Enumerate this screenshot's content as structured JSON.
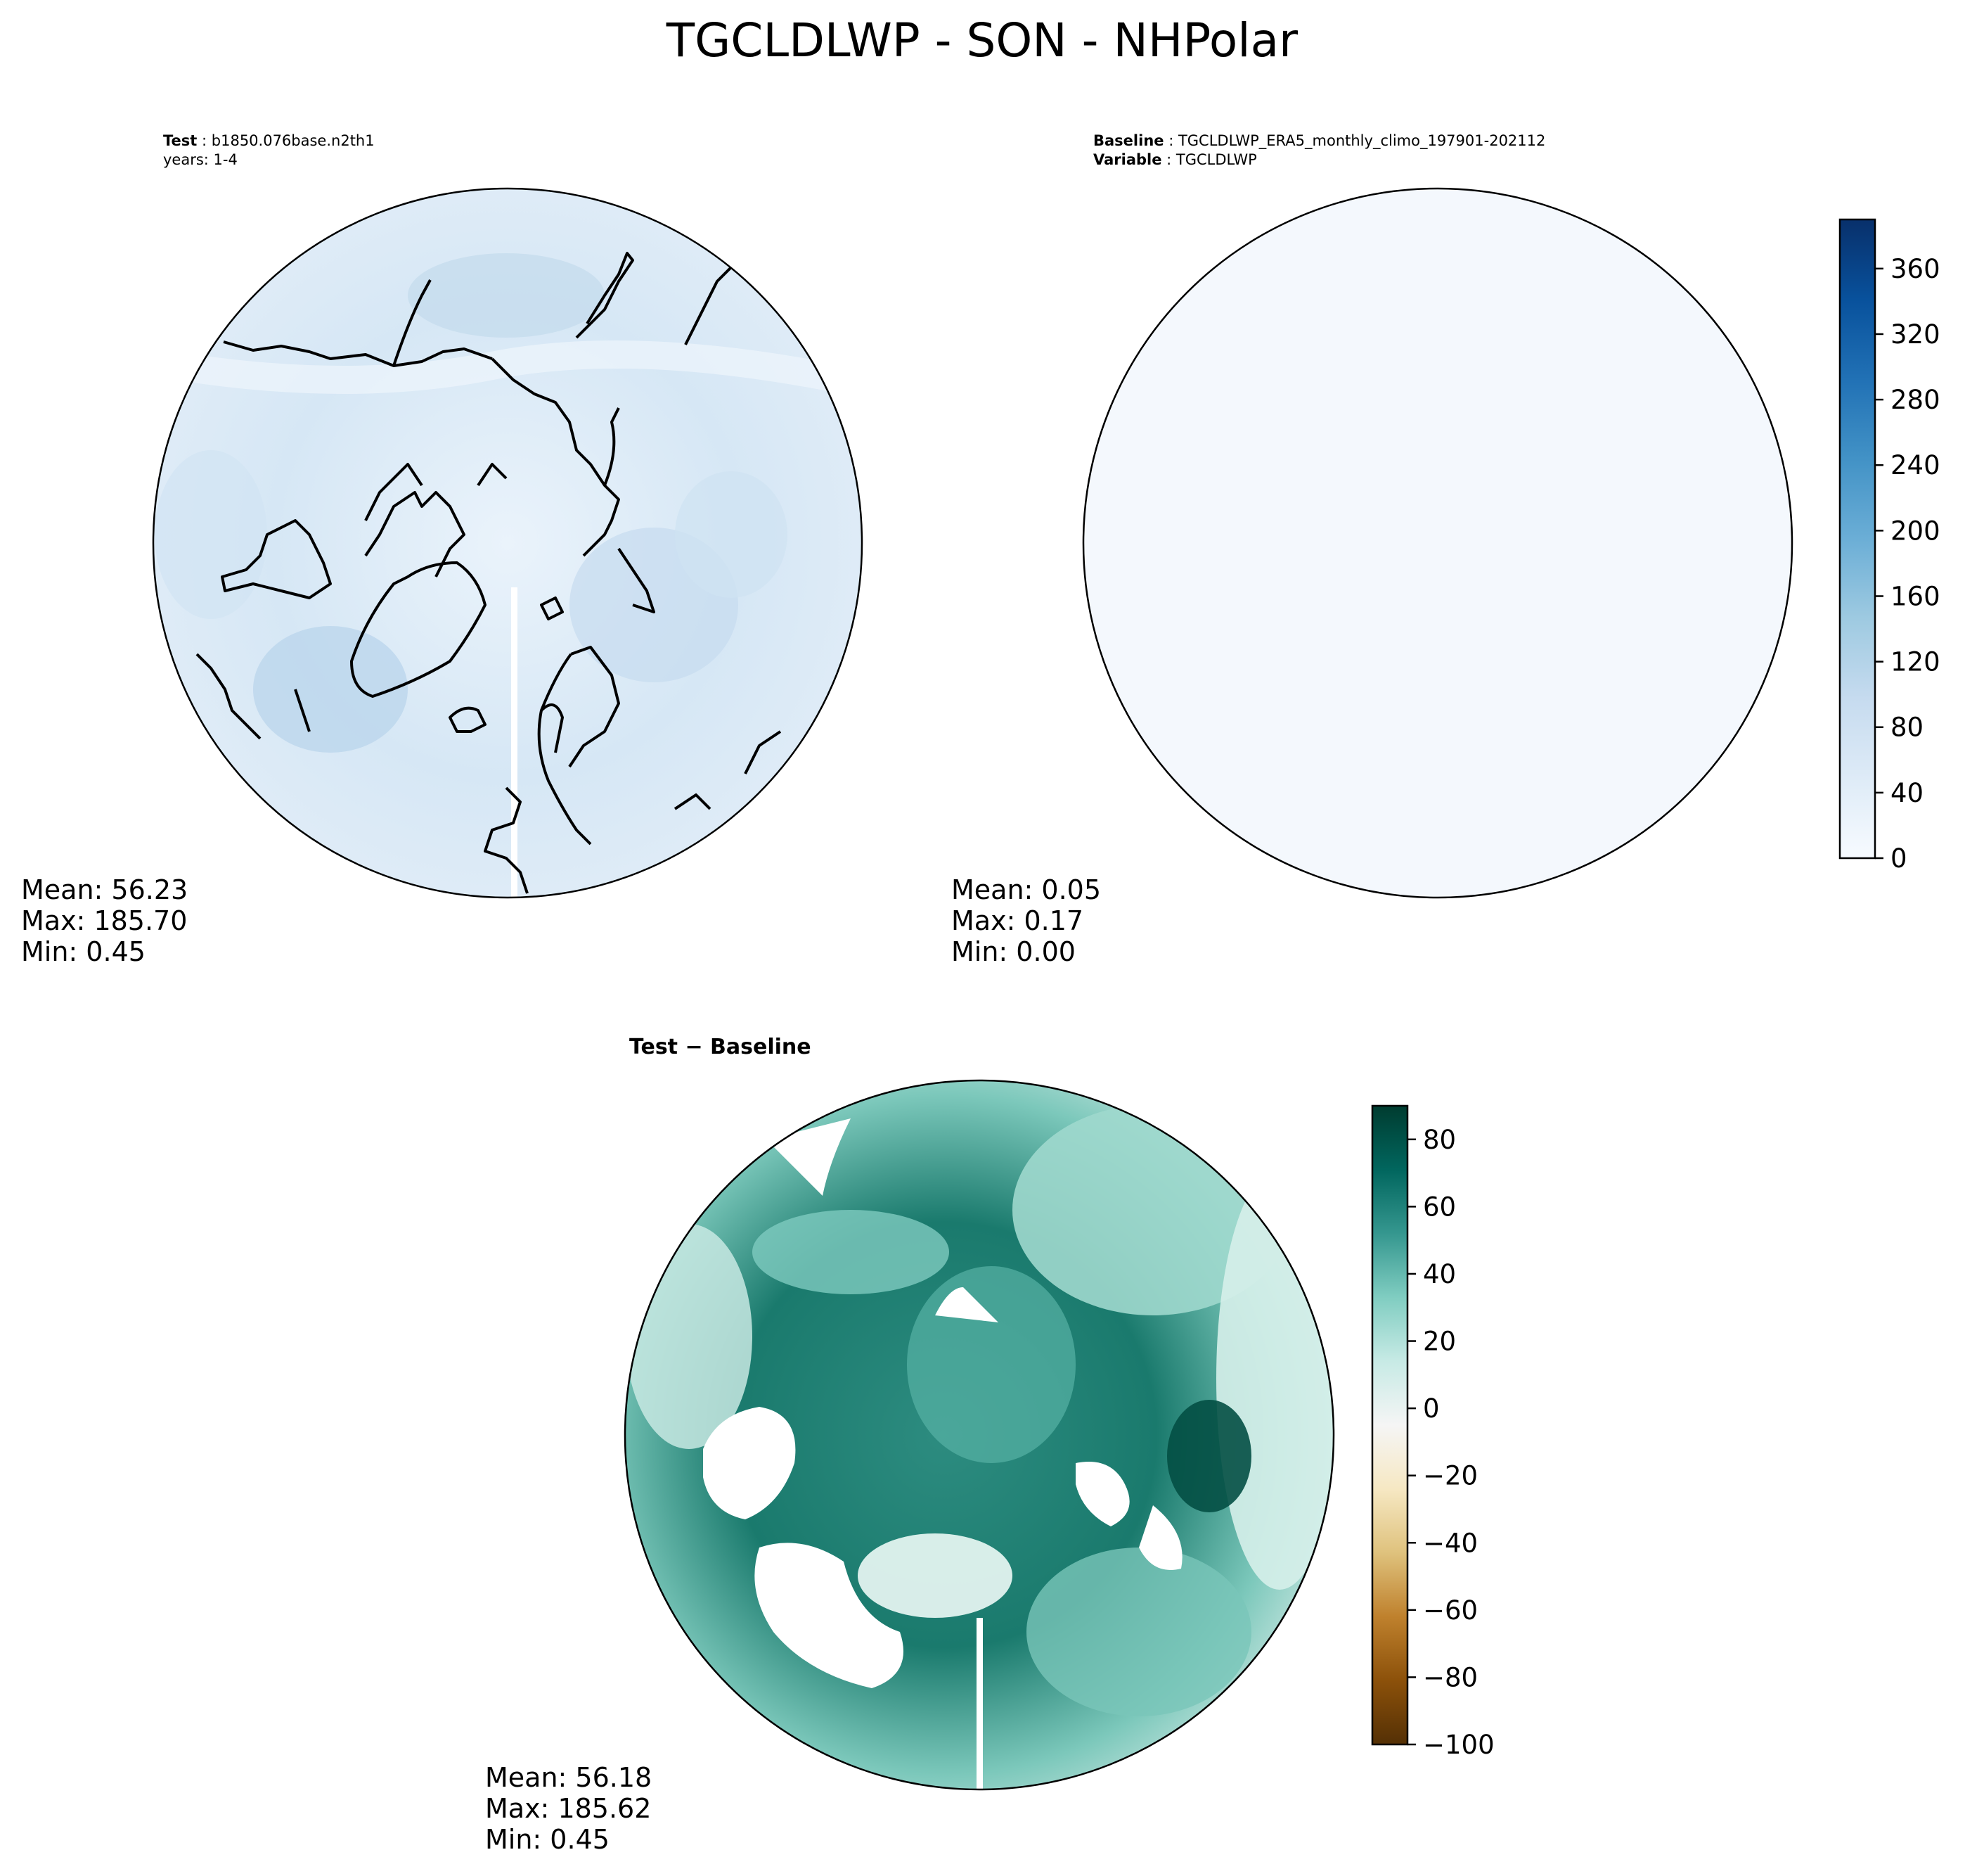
{
  "title": "TGCLDLWP - SON - NHPolar",
  "panels": [
    {
      "id": "test",
      "header_lines": [
        {
          "label": "Test",
          "value": "b1850.076base.n2th1"
        },
        {
          "label": "",
          "value": "years: 1-4"
        }
      ],
      "stats": {
        "mean": "Mean: 56.23",
        "max": "Max: 185.70",
        "min": "Min:  0.45"
      }
    },
    {
      "id": "baseline",
      "header_lines": [
        {
          "label": "Baseline",
          "value": "TGCLDLWP_ERA5_monthly_climo_197901-202112"
        },
        {
          "label": "Variable",
          "value": "TGCLDLWP"
        }
      ],
      "stats": {
        "mean": "Mean:  0.05",
        "max": "Max:  0.17",
        "min": "Min:  0.00"
      }
    },
    {
      "id": "diff",
      "header_lines": [
        {
          "label": "Test − Baseline",
          "value": ""
        }
      ],
      "stats": {
        "mean": "Mean: 56.18",
        "max": "Max: 185.62",
        "min": "Min:  0.45"
      }
    }
  ],
  "colorbars": [
    {
      "id": "cbar-blues",
      "colormap": "Blues",
      "range": [
        0,
        390
      ],
      "ticks": [
        0,
        40,
        80,
        120,
        160,
        200,
        240,
        280,
        320,
        360
      ],
      "tick_labels": [
        "0",
        "40",
        "80",
        "120",
        "160",
        "200",
        "240",
        "280",
        "320",
        "360"
      ],
      "colors": [
        "#f7fbff",
        "#deebf7",
        "#c6dbef",
        "#9ecae1",
        "#6baed6",
        "#4292c6",
        "#2171b5",
        "#08519c",
        "#08306b"
      ]
    },
    {
      "id": "cbar-brbg",
      "colormap": "BrBG",
      "range": [
        -100,
        90
      ],
      "ticks": [
        -100,
        -80,
        -60,
        -40,
        -20,
        0,
        20,
        40,
        60,
        80
      ],
      "tick_labels": [
        "−100",
        "−80",
        "−60",
        "−40",
        "−20",
        "0",
        "20",
        "40",
        "60",
        "80"
      ],
      "colors": [
        "#543005",
        "#8c510a",
        "#bf812d",
        "#dfc27d",
        "#f6e8c3",
        "#f5f5f5",
        "#c7eae5",
        "#80cdc1",
        "#35978f",
        "#01665e",
        "#003c30"
      ]
    }
  ],
  "palette": {
    "test_field": "#dbe9f6",
    "baseline_field": "#f4f8fd",
    "diff_strong": "#0c6b5f",
    "diff_mid": "#3a9c8e",
    "diff_light": "#a3dcd2",
    "coast": "#000000"
  }
}
